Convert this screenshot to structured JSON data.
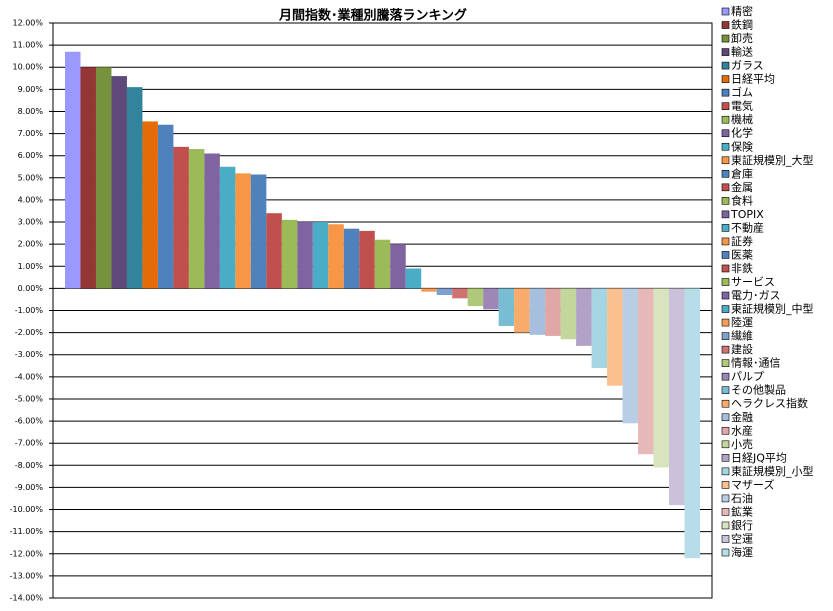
{
  "chart_data": {
    "type": "bar",
    "title": "月間指数･業種別騰落ランキング",
    "ylim": [
      -14,
      12
    ],
    "yticks": [
      {
        "value": 12,
        "label": "12.00%"
      },
      {
        "value": 11,
        "label": "11.00%"
      },
      {
        "value": 10,
        "label": "10.00%"
      },
      {
        "value": 9,
        "label": "9.00%"
      },
      {
        "value": 8,
        "label": "8.00%"
      },
      {
        "value": 7,
        "label": "7.00%"
      },
      {
        "value": 6,
        "label": "6.00%"
      },
      {
        "value": 5,
        "label": "5.00%"
      },
      {
        "value": 4,
        "label": "4.00%"
      },
      {
        "value": 3,
        "label": "3.00%"
      },
      {
        "value": 2,
        "label": "2.00%"
      },
      {
        "value": 1,
        "label": "1.00%"
      },
      {
        "value": 0,
        "label": "0.00%"
      },
      {
        "value": -1,
        "label": "-1.00%"
      },
      {
        "value": -2,
        "label": "-2.00%"
      },
      {
        "value": -3,
        "label": "-3.00%"
      },
      {
        "value": -4,
        "label": "-4.00%"
      },
      {
        "value": -5,
        "label": "-5.00%"
      },
      {
        "value": -6,
        "label": "-6.00%"
      },
      {
        "value": -7,
        "label": "-7.00%"
      },
      {
        "value": -8,
        "label": "-8.00%"
      },
      {
        "value": -9,
        "label": "-9.00%"
      },
      {
        "value": -10,
        "label": "-10.00%"
      },
      {
        "value": -11,
        "label": "-11.00%"
      },
      {
        "value": -12,
        "label": "-12.00%"
      },
      {
        "value": -13,
        "label": "-13.00%"
      },
      {
        "value": -14,
        "label": "-14.00%"
      }
    ],
    "grid": true,
    "legend": "right",
    "series": [
      {
        "name": "精密",
        "color": "#9999FF",
        "values": [
          10.7
        ]
      },
      {
        "name": "鉄鋼",
        "color": "#943634",
        "values": [
          10.0
        ]
      },
      {
        "name": "卸売",
        "color": "#76923C",
        "values": [
          10.0
        ]
      },
      {
        "name": "輸送",
        "color": "#5F497A",
        "values": [
          9.6
        ]
      },
      {
        "name": "ガラス",
        "color": "#31849B",
        "values": [
          9.1
        ]
      },
      {
        "name": "日経平均",
        "color": "#E36C09",
        "values": [
          7.55
        ]
      },
      {
        "name": "ゴム",
        "color": "#4F81BD",
        "values": [
          7.4
        ]
      },
      {
        "name": "電気",
        "color": "#C0504D",
        "values": [
          6.4
        ]
      },
      {
        "name": "機械",
        "color": "#9BBB59",
        "values": [
          6.3
        ]
      },
      {
        "name": "化学",
        "color": "#8064A2",
        "values": [
          6.1
        ]
      },
      {
        "name": "保険",
        "color": "#4BACC6",
        "values": [
          5.5
        ]
      },
      {
        "name": "東証規模別_大型",
        "color": "#F79646",
        "values": [
          5.2
        ]
      },
      {
        "name": "倉庫",
        "color": "#4F81BD",
        "values": [
          5.15
        ]
      },
      {
        "name": "金属",
        "color": "#C0504D",
        "values": [
          3.4
        ]
      },
      {
        "name": "食料",
        "color": "#9BBB59",
        "values": [
          3.1
        ]
      },
      {
        "name": "TOPIX",
        "color": "#8064A2",
        "values": [
          3.0
        ]
      },
      {
        "name": "不動産",
        "color": "#4BACC6",
        "values": [
          3.0
        ]
      },
      {
        "name": "証券",
        "color": "#F79646",
        "values": [
          2.9
        ]
      },
      {
        "name": "医薬",
        "color": "#4F81BD",
        "values": [
          2.7
        ]
      },
      {
        "name": "非鉄",
        "color": "#C0504D",
        "values": [
          2.6
        ]
      },
      {
        "name": "サービス",
        "color": "#9BBB59",
        "values": [
          2.2
        ]
      },
      {
        "name": "電力･ガス",
        "color": "#8064A2",
        "values": [
          2.0
        ]
      },
      {
        "name": "東証規模別_中型",
        "color": "#4BACC6",
        "values": [
          0.9
        ]
      },
      {
        "name": "陸運",
        "color": "#F59D56",
        "values": [
          -0.15
        ]
      },
      {
        "name": "繊維",
        "color": "#7F9FCF",
        "values": [
          -0.3
        ]
      },
      {
        "name": "建設",
        "color": "#CD7371",
        "values": [
          -0.45
        ]
      },
      {
        "name": "情報･通信",
        "color": "#AFC97A",
        "values": [
          -0.8
        ]
      },
      {
        "name": "パルプ",
        "color": "#9C87B6",
        "values": [
          -0.95
        ]
      },
      {
        "name": "その他製品",
        "color": "#78BDD1",
        "values": [
          -1.7
        ]
      },
      {
        "name": "ヘラクレス指数",
        "color": "#F9AB6B",
        "values": [
          -2.0
        ]
      },
      {
        "name": "金融",
        "color": "#A7BFDE",
        "values": [
          -2.1
        ]
      },
      {
        "name": "水産",
        "color": "#DFA7A6",
        "values": [
          -2.15
        ]
      },
      {
        "name": "小売",
        "color": "#C3D69B",
        "values": [
          -2.3
        ]
      },
      {
        "name": "日経JQ平均",
        "color": "#B3A2C7",
        "values": [
          -2.6
        ]
      },
      {
        "name": "東証規模別_小型",
        "color": "#A5D5E2",
        "values": [
          -3.6
        ]
      },
      {
        "name": "マザーズ",
        "color": "#FAC090",
        "values": [
          -4.4
        ]
      },
      {
        "name": "石油",
        "color": "#B9CDE5",
        "values": [
          -6.1
        ]
      },
      {
        "name": "鉱業",
        "color": "#E6B9B8",
        "values": [
          -7.5
        ]
      },
      {
        "name": "銀行",
        "color": "#D7E4BD",
        "values": [
          -8.1
        ]
      },
      {
        "name": "空運",
        "color": "#CCC1DA",
        "values": [
          -9.8
        ]
      },
      {
        "name": "海運",
        "color": "#B7DEE8",
        "values": [
          -12.2
        ]
      }
    ]
  }
}
